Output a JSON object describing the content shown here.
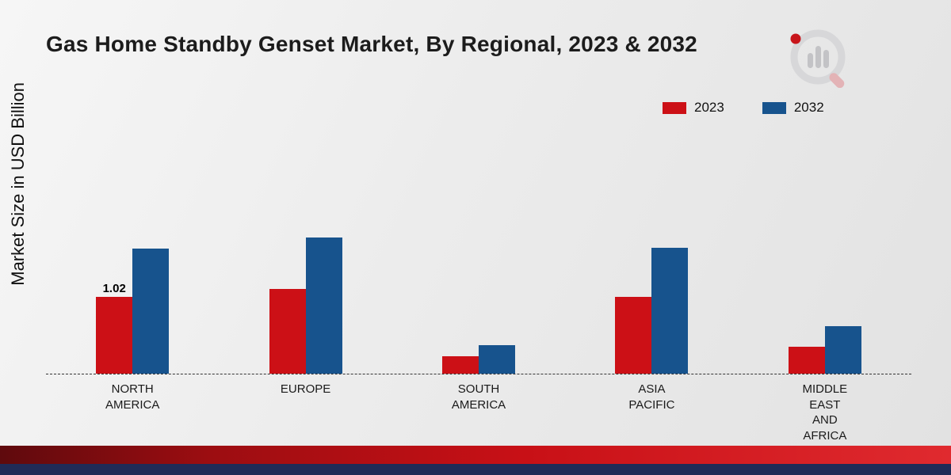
{
  "title": "Gas Home Standby Genset Market, By Regional, 2023 & 2032",
  "ylabel": "Market Size in USD Billion",
  "legend": {
    "items": [
      {
        "label": "2023",
        "color": "#cc1016"
      },
      {
        "label": "2032",
        "color": "#17538d"
      }
    ]
  },
  "colors": {
    "series_2023": "#cc1016",
    "series_2032": "#17538d",
    "bottom_band_red": "#c81016",
    "bottom_band_navy": "#202b57"
  },
  "chart_data": {
    "type": "bar",
    "title": "Gas Home Standby Genset Market, By Regional, 2023 & 2032",
    "xlabel": "",
    "ylabel": "Market Size in USD Billion",
    "categories": [
      "North America",
      "Europe",
      "South America",
      "Asia Pacific",
      "Middle East and Africa"
    ],
    "category_labels": [
      "NORTH\nAMERICA",
      "EUROPE",
      "SOUTH\nAMERICA",
      "ASIA\nPACIFIC",
      "MIDDLE\nEAST\nAND\nAFRICA"
    ],
    "series": [
      {
        "name": "2023",
        "color": "#cc1016",
        "values": [
          1.02,
          1.12,
          0.23,
          1.02,
          0.36
        ]
      },
      {
        "name": "2032",
        "color": "#17538d",
        "values": [
          1.65,
          1.8,
          0.38,
          1.66,
          0.63
        ]
      }
    ],
    "data_labels": [
      {
        "series": "2023",
        "category": "North America",
        "text": "1.02"
      }
    ],
    "ylim": [
      0,
      2.0
    ],
    "grid": false,
    "legend_position": "top-right",
    "baseline_style": "dashed"
  }
}
